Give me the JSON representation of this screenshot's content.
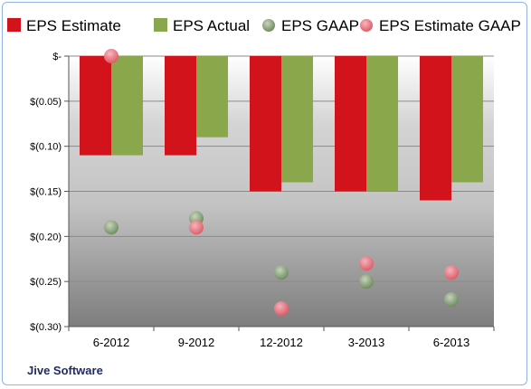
{
  "company": "Jive Software",
  "chart_data": {
    "type": "bar",
    "categories": [
      "6-2012",
      "9-2012",
      "12-2012",
      "3-2013",
      "6-2013"
    ],
    "ylim": [
      -0.3,
      0
    ],
    "yticks": [
      {
        "value": 0,
        "label": "$-"
      },
      {
        "value": -0.05,
        "label": "$(0.05)"
      },
      {
        "value": -0.1,
        "label": "$(0.10)"
      },
      {
        "value": -0.15,
        "label": "$(0.15)"
      },
      {
        "value": -0.2,
        "label": "$(0.20)"
      },
      {
        "value": -0.25,
        "label": "$(0.25)"
      },
      {
        "value": -0.3,
        "label": "$(0.30)"
      }
    ],
    "grid": true,
    "legend_position": "top",
    "series": [
      {
        "name": "EPS Estimate",
        "kind": "bar",
        "color": "#d2131c",
        "values": [
          -0.11,
          -0.11,
          -0.15,
          -0.15,
          -0.16
        ]
      },
      {
        "name": "EPS Actual",
        "kind": "bar",
        "color": "#8aa84b",
        "values": [
          -0.11,
          -0.09,
          -0.14,
          -0.15,
          -0.14
        ]
      },
      {
        "name": "EPS GAAP",
        "kind": "scatter",
        "color": "#7e9a6e",
        "values": [
          -0.19,
          -0.18,
          -0.24,
          -0.25,
          -0.27
        ]
      },
      {
        "name": "EPS Estimate GAAP",
        "kind": "scatter",
        "color": "#ec7a86",
        "values": [
          0.0,
          -0.19,
          -0.28,
          -0.23,
          -0.24
        ]
      }
    ]
  }
}
